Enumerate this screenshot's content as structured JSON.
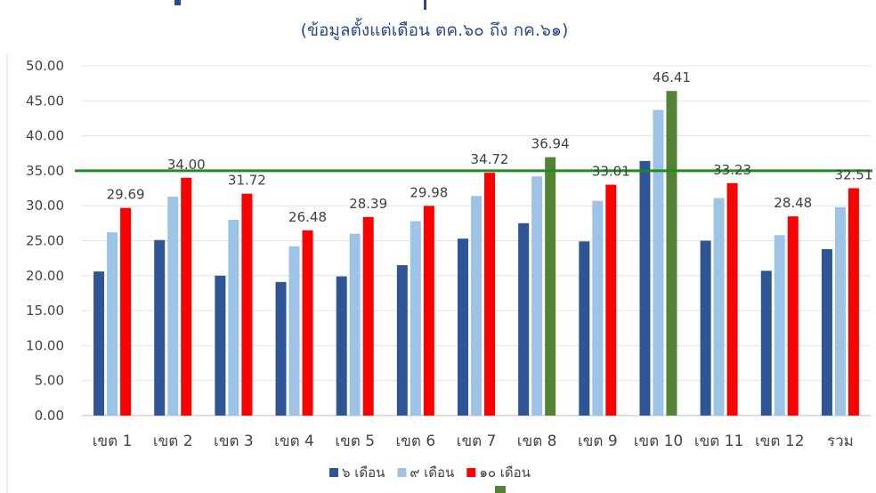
{
  "chart_data": {
    "type": "bar",
    "subtitle": "(ข้อมูลตั้งแต่เดือน ตค.๖๐ ถึง กค.๖๑)",
    "categories": [
      "เขต 1",
      "เขต 2",
      "เขต 3",
      "เขต 4",
      "เขต 5",
      "เขต 6",
      "เขต 7",
      "เขต 8",
      "เขต 9",
      "เขต 10",
      "เขต 11",
      "เขต 12",
      "รวม"
    ],
    "series": [
      {
        "name": "๖ เดือน",
        "color": "#2f5597",
        "values": [
          20.6,
          25.1,
          20.0,
          19.1,
          19.9,
          21.5,
          25.3,
          27.5,
          24.9,
          36.4,
          25.0,
          20.7,
          23.8
        ]
      },
      {
        "name": "๙ เดือน",
        "color": "#9dc3e6",
        "values": [
          26.2,
          31.3,
          28.0,
          24.2,
          26.0,
          27.8,
          31.4,
          34.2,
          30.7,
          43.7,
          31.1,
          25.8,
          29.8
        ]
      },
      {
        "name": "๑๐ เดือน",
        "color": "#ff0000",
        "values": [
          29.69,
          34.0,
          31.72,
          26.48,
          28.39,
          29.98,
          34.72,
          36.94,
          33.01,
          46.41,
          33.23,
          28.48,
          32.51
        ]
      }
    ],
    "highlight_color": "#548235",
    "highlighted_categories": [
      "เขต 8",
      "เขต 10"
    ],
    "data_labels": [
      "29.69",
      "34.00",
      "31.72",
      "26.48",
      "28.39",
      "29.98",
      "34.72",
      "36.94",
      "33.01",
      "46.41",
      "33.23",
      "28.48",
      "32.51"
    ],
    "y_ticks": [
      "0.00",
      "5.00",
      "10.00",
      "15.00",
      "20.00",
      "25.00",
      "30.00",
      "35.00",
      "40.00",
      "45.00",
      "50.00"
    ],
    "ylim": [
      0,
      50
    ],
    "reference_line": {
      "value": 35,
      "color": "#1e8c1e"
    },
    "grid": true,
    "legend_placement": "bottom-center"
  }
}
